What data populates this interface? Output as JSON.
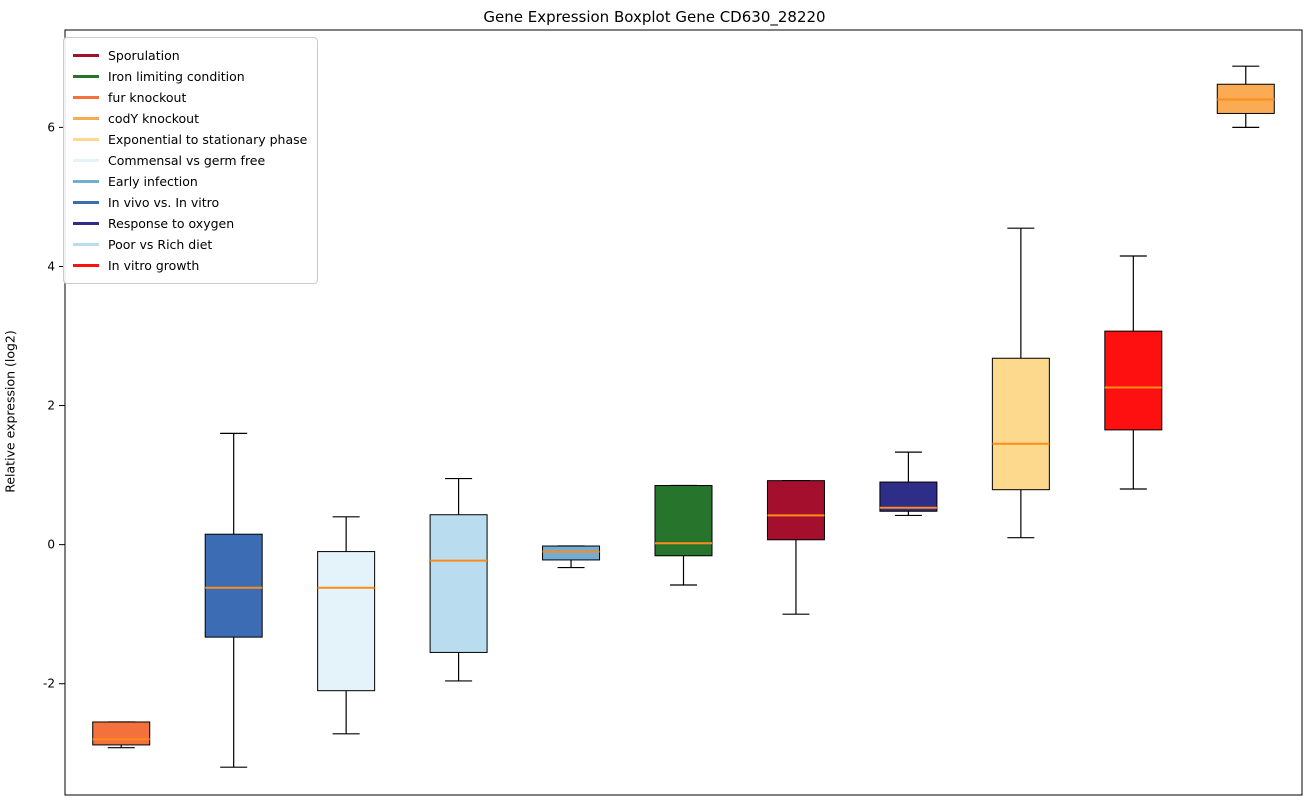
{
  "chart_data": {
    "type": "boxplot",
    "title": "Gene Expression Boxplot Gene CD630_28220",
    "ylabel": "Relative expression (log2)",
    "ylim": [
      -3.6,
      7.4
    ],
    "yticks": [
      -2,
      0,
      2,
      4,
      6
    ],
    "grid": false,
    "legend_position": "upper left",
    "median_color": "#ff8c1a",
    "whisker_color": "#000000",
    "box_edge_color": "#000000",
    "legend": [
      {
        "label": "Sporulation",
        "color": "#a50f2e"
      },
      {
        "label": "Iron limiting condition",
        "color": "#27742c"
      },
      {
        "label": "fur knockout",
        "color": "#f4703c"
      },
      {
        "label": "codY knockout",
        "color": "#fbab53"
      },
      {
        "label": "Exponential to stationary phase",
        "color": "#fcd98c"
      },
      {
        "label": "Commensal vs germ free",
        "color": "#e4f3fa"
      },
      {
        "label": "Early infection",
        "color": "#74add1"
      },
      {
        "label": "In vivo vs. In vitro",
        "color": "#3c6cb4"
      },
      {
        "label": "Response to oxygen",
        "color": "#2e2d88"
      },
      {
        "label": "Poor vs Rich diet",
        "color": "#b9dcee"
      },
      {
        "label": "In vitro growth",
        "color": "#fe1010"
      }
    ],
    "series": [
      {
        "label": "fur knockout",
        "color": "#f4703c",
        "whisker_low": -2.92,
        "q1": -2.88,
        "median": -2.8,
        "q3": -2.55,
        "whisker_high": -2.55
      },
      {
        "label": "In vivo vs. In vitro",
        "color": "#3c6cb4",
        "whisker_low": -3.2,
        "q1": -1.33,
        "median": -0.62,
        "q3": 0.15,
        "whisker_high": 1.6
      },
      {
        "label": "Commensal vs germ free",
        "color": "#e4f3fa",
        "whisker_low": -2.72,
        "q1": -2.1,
        "median": -0.62,
        "q3": -0.1,
        "whisker_high": 0.4
      },
      {
        "label": "Poor vs Rich diet",
        "color": "#b9dcee",
        "whisker_low": -1.96,
        "q1": -1.55,
        "median": -0.23,
        "q3": 0.43,
        "whisker_high": 0.95
      },
      {
        "label": "Early infection",
        "color": "#74add1",
        "whisker_low": -0.33,
        "q1": -0.22,
        "median": -0.1,
        "q3": -0.02,
        "whisker_high": -0.02
      },
      {
        "label": "Iron limiting condition",
        "color": "#27742c",
        "whisker_low": -0.58,
        "q1": -0.16,
        "median": 0.02,
        "q3": 0.85,
        "whisker_high": 0.85
      },
      {
        "label": "Sporulation",
        "color": "#a50f2e",
        "whisker_low": -1.0,
        "q1": 0.07,
        "median": 0.42,
        "q3": 0.92,
        "whisker_high": 0.92
      },
      {
        "label": "Response to oxygen",
        "color": "#2e2d88",
        "whisker_low": 0.42,
        "q1": 0.48,
        "median": 0.53,
        "q3": 0.9,
        "whisker_high": 1.33
      },
      {
        "label": "Exponential to stationary phase",
        "color": "#fcd98c",
        "whisker_low": 0.1,
        "q1": 0.79,
        "median": 1.45,
        "q3": 2.68,
        "whisker_high": 4.55
      },
      {
        "label": "In vitro growth",
        "color": "#fe1010",
        "whisker_low": 0.8,
        "q1": 1.65,
        "median": 2.26,
        "q3": 3.07,
        "whisker_high": 4.15
      },
      {
        "label": "codY knockout",
        "color": "#fbab53",
        "whisker_low": 6.0,
        "q1": 6.2,
        "median": 6.4,
        "q3": 6.62,
        "whisker_high": 6.88
      }
    ]
  }
}
